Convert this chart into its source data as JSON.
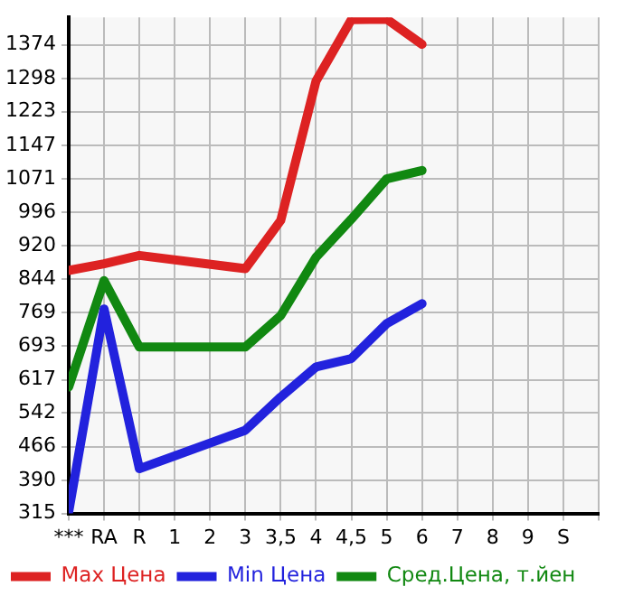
{
  "chart_data": {
    "type": "line",
    "categories": [
      "***",
      "RA",
      "R",
      "1",
      "2",
      "3",
      "3,5",
      "4",
      "4,5",
      "5",
      "6",
      "7",
      "8",
      "9",
      "S"
    ],
    "series": [
      {
        "name": "Max Цена",
        "color": "#dd2222",
        "values": [
          864,
          879,
          898,
          null,
          null,
          868,
          977,
          1292,
          1431,
          1432,
          1375,
          null,
          null,
          null,
          null
        ]
      },
      {
        "name": "Min Цена",
        "color": "#2222dd",
        "values": [
          319,
          777,
          416,
          null,
          null,
          503,
          578,
          646,
          665,
          744,
          789,
          null,
          null,
          null,
          null
        ]
      },
      {
        "name": "Сред.Цена, т.йен",
        "color": "#118811",
        "values": [
          601,
          841,
          691,
          null,
          null,
          691,
          762,
          894,
          980,
          1071,
          1090,
          null,
          null,
          null,
          null
        ]
      }
    ],
    "ylim": [
      315,
      1436
    ],
    "yticks": [
      315,
      390,
      466,
      542,
      617,
      693,
      769,
      844,
      920,
      996,
      1071,
      1147,
      1223,
      1298,
      1374
    ],
    "grid": true,
    "legend": "bottom",
    "marker": "none",
    "line_style": "solid"
  }
}
